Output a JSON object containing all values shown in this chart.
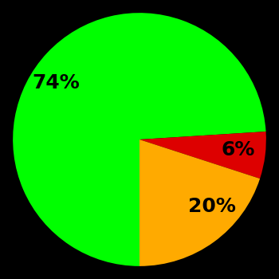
{
  "slices": [
    74,
    6,
    20
  ],
  "labels": [
    "74%",
    "6%",
    "20%"
  ],
  "colors": [
    "#00ff00",
    "#dd0000",
    "#ffaa00"
  ],
  "startangle": 270,
  "counterclock": false,
  "background_color": "#000000",
  "label_fontsize": 18,
  "label_fontweight": "bold",
  "labeldistance": 0.65
}
